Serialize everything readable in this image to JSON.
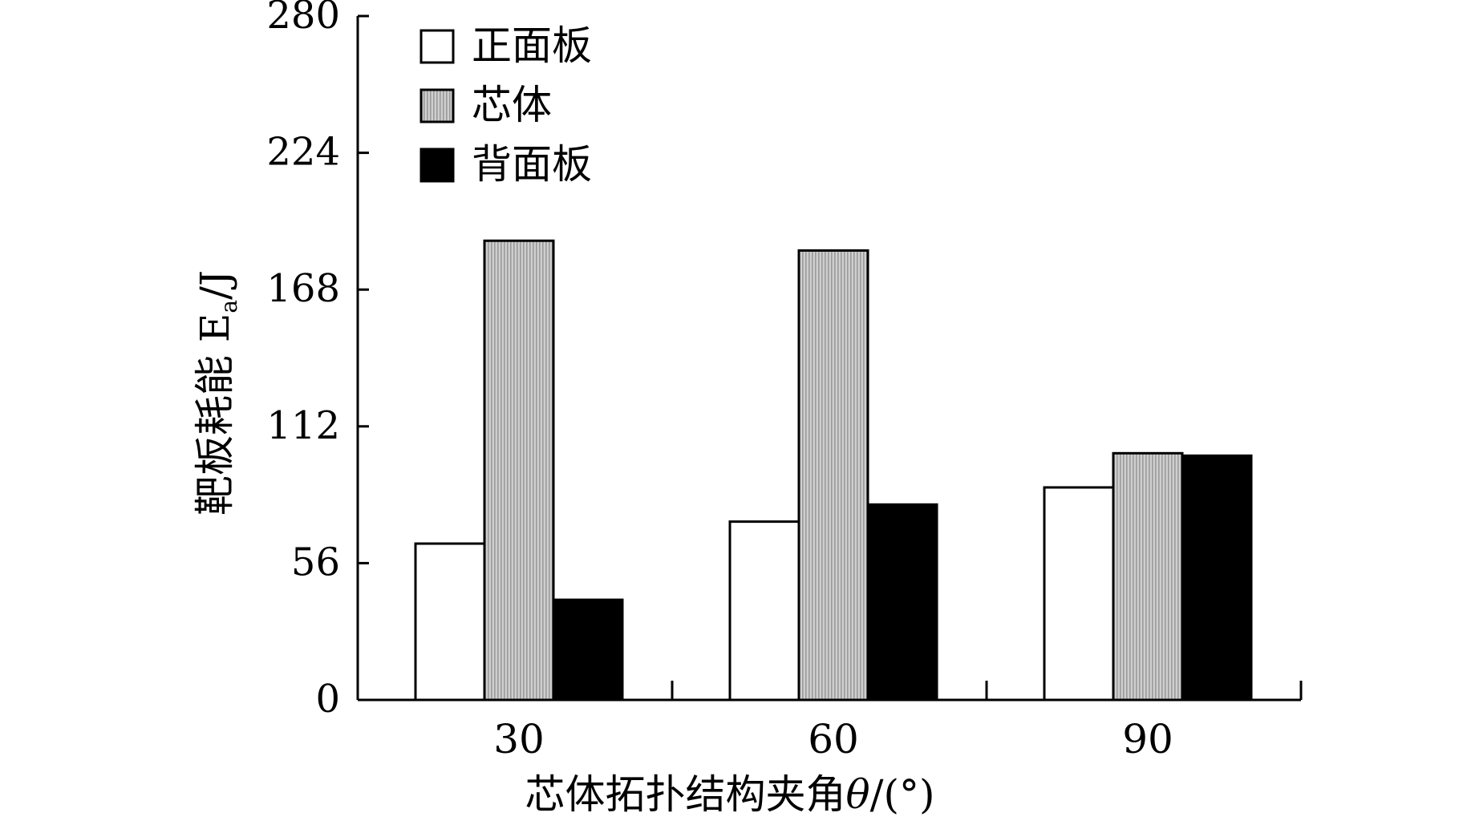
{
  "chart_data": {
    "type": "bar",
    "categories": [
      "30",
      "60",
      "90"
    ],
    "series": [
      {
        "name": "正面板",
        "values": [
          64,
          73,
          87
        ],
        "fill": "#ffffff"
      },
      {
        "name": "芯体",
        "values": [
          188,
          184,
          101
        ],
        "fill": "#c6c6c6"
      },
      {
        "name": "背面板",
        "values": [
          41,
          80,
          100
        ],
        "fill": "#000000"
      }
    ],
    "y_ticks": [
      "0",
      "56",
      "112",
      "168",
      "224",
      "280"
    ],
    "ylim": [
      0,
      280
    ],
    "ylabel": "靶板耗能 E",
    "ylabel_sub": "a",
    "ylabel_unit": "/J",
    "xlabel": "芯体拓扑结构夹角",
    "xlabel_symbol": "θ",
    "xlabel_unit": "/(°)",
    "legend_position": "top-left",
    "grid": false
  }
}
